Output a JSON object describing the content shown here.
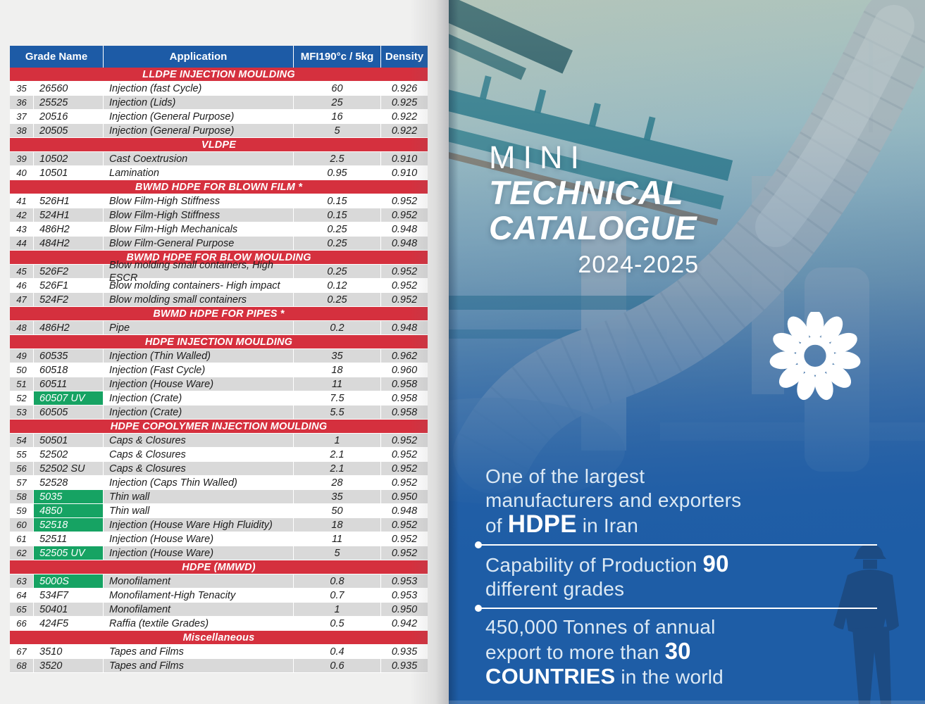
{
  "colors": {
    "header_blue": "#1d5ba6",
    "section_red": "#d5303e",
    "row_gray": "#d9d9d9",
    "highlight_green": "#16a363",
    "cover_blue": "#1e5da6"
  },
  "table": {
    "headers": [
      "Grade Name",
      "Application",
      "MFI190°c / 5kg",
      "Density"
    ],
    "sections": [
      {
        "title": "LLDPE INJECTION MOULDING",
        "rows": [
          {
            "no": "35",
            "grade": "26560",
            "app": "Injection (fast Cycle)",
            "mfi": "60",
            "den": "0.926",
            "shade": "w",
            "green": false
          },
          {
            "no": "36",
            "grade": "25525",
            "app": "Injection (Lids)",
            "mfi": "25",
            "den": "0.925",
            "shade": "g",
            "green": false
          },
          {
            "no": "37",
            "grade": "20516",
            "app": "Injection (General Purpose)",
            "mfi": "16",
            "den": "0.922",
            "shade": "w",
            "green": false
          },
          {
            "no": "38",
            "grade": "20505",
            "app": "Injection (General Purpose)",
            "mfi": "5",
            "den": "0.922",
            "shade": "g",
            "green": false
          }
        ]
      },
      {
        "title": "VLDPE",
        "rows": [
          {
            "no": "39",
            "grade": "10502",
            "app": "Cast Coextrusion",
            "mfi": "2.5",
            "den": "0.910",
            "shade": "g",
            "green": false
          },
          {
            "no": "40",
            "grade": "10501",
            "app": "Lamination",
            "mfi": "0.95",
            "den": "0.910",
            "shade": "w",
            "green": false
          }
        ]
      },
      {
        "title": "BWMD HDPE FOR BLOWN FILM *",
        "rows": [
          {
            "no": "41",
            "grade": "526H1",
            "app": "Blow Film-High Stiffness",
            "mfi": "0.15",
            "den": "0.952",
            "shade": "w",
            "green": false
          },
          {
            "no": "42",
            "grade": "524H1",
            "app": "Blow Film-High Stiffness",
            "mfi": "0.15",
            "den": "0.952",
            "shade": "g",
            "green": false
          },
          {
            "no": "43",
            "grade": "486H2",
            "app": "Blow Film-High Mechanicals",
            "mfi": "0.25",
            "den": "0.948",
            "shade": "w",
            "green": false
          },
          {
            "no": "44",
            "grade": "484H2",
            "app": "Blow Film-General Purpose",
            "mfi": "0.25",
            "den": "0.948",
            "shade": "g",
            "green": false
          }
        ]
      },
      {
        "title": "BWMD HDPE FOR BLOW MOULDING",
        "rows": [
          {
            "no": "45",
            "grade": "526F2",
            "app": "Blow molding small containers, High ESCR",
            "mfi": "0.25",
            "den": "0.952",
            "shade": "g",
            "green": false
          },
          {
            "no": "46",
            "grade": "526F1",
            "app": "Blow molding containers- High impact",
            "mfi": "0.12",
            "den": "0.952",
            "shade": "w",
            "green": false
          },
          {
            "no": "47",
            "grade": "524F2",
            "app": "Blow molding small containers",
            "mfi": "0.25",
            "den": "0.952",
            "shade": "g",
            "green": false
          }
        ]
      },
      {
        "title": "BWMD HDPE FOR PIPES *",
        "rows": [
          {
            "no": "48",
            "grade": "486H2",
            "app": "Pipe",
            "mfi": "0.2",
            "den": "0.948",
            "shade": "g",
            "green": false
          }
        ]
      },
      {
        "title": "HDPE INJECTION MOULDING",
        "rows": [
          {
            "no": "49",
            "grade": "60535",
            "app": "Injection (Thin Walled)",
            "mfi": "35",
            "den": "0.962",
            "shade": "g",
            "green": false
          },
          {
            "no": "50",
            "grade": "60518",
            "app": "Injection (Fast Cycle)",
            "mfi": "18",
            "den": "0.960",
            "shade": "w",
            "green": false
          },
          {
            "no": "51",
            "grade": "60511",
            "app": "Injection (House Ware)",
            "mfi": "11",
            "den": "0.958",
            "shade": "g",
            "green": false
          },
          {
            "no": "52",
            "grade": "60507 UV",
            "app": "Injection (Crate)",
            "mfi": "7.5",
            "den": "0.958",
            "shade": "w",
            "green": true
          },
          {
            "no": "53",
            "grade": "60505",
            "app": "Injection (Crate)",
            "mfi": "5.5",
            "den": "0.958",
            "shade": "g",
            "green": false
          }
        ]
      },
      {
        "title": "HDPE COPOLYMER INJECTION MOULDING",
        "rows": [
          {
            "no": "54",
            "grade": "50501",
            "app": "Caps & Closures",
            "mfi": "1",
            "den": "0.952",
            "shade": "g",
            "green": false
          },
          {
            "no": "55",
            "grade": "52502",
            "app": "Caps & Closures",
            "mfi": "2.1",
            "den": "0.952",
            "shade": "w",
            "green": false
          },
          {
            "no": "56",
            "grade": "52502 SU",
            "app": "Caps & Closures",
            "mfi": "2.1",
            "den": "0.952",
            "shade": "g",
            "green": false
          },
          {
            "no": "57",
            "grade": "52528",
            "app": "Injection (Caps Thin Walled)",
            "mfi": "28",
            "den": "0.952",
            "shade": "w",
            "green": false
          },
          {
            "no": "58",
            "grade": "5035",
            "app": "Thin wall",
            "mfi": "35",
            "den": "0.950",
            "shade": "g",
            "green": true
          },
          {
            "no": "59",
            "grade": "4850",
            "app": "Thin wall",
            "mfi": "50",
            "den": "0.948",
            "shade": "w",
            "green": true
          },
          {
            "no": "60",
            "grade": "52518",
            "app": "Injection (House Ware High Fluidity)",
            "mfi": "18",
            "den": "0.952",
            "shade": "g",
            "green": true
          },
          {
            "no": "61",
            "grade": "52511",
            "app": "Injection (House Ware)",
            "mfi": "11",
            "den": "0.952",
            "shade": "w",
            "green": false
          },
          {
            "no": "62",
            "grade": "52505 UV",
            "app": "Injection (House Ware)",
            "mfi": "5",
            "den": "0.952",
            "shade": "g",
            "green": true
          }
        ]
      },
      {
        "title": "HDPE (MMWD)",
        "rows": [
          {
            "no": "63",
            "grade": "5000S",
            "app": "Monofilament",
            "mfi": "0.8",
            "den": "0.953",
            "shade": "g",
            "green": true
          },
          {
            "no": "64",
            "grade": "534F7",
            "app": "Monofilament-High Tenacity",
            "mfi": "0.7",
            "den": "0.953",
            "shade": "w",
            "green": false
          },
          {
            "no": "65",
            "grade": "50401",
            "app": "Monofilament",
            "mfi": "1",
            "den": "0.950",
            "shade": "g",
            "green": false
          },
          {
            "no": "66",
            "grade": "424F5",
            "app": "Raffia (textile Grades)",
            "mfi": "0.5",
            "den": "0.942",
            "shade": "w",
            "green": false
          }
        ]
      },
      {
        "title": "Miscellaneous",
        "rows": [
          {
            "no": "67",
            "grade": "3510",
            "app": "Tapes and Films",
            "mfi": "0.4",
            "den": "0.935",
            "shade": "w",
            "green": false
          },
          {
            "no": "68",
            "grade": "3520",
            "app": "Tapes and Films",
            "mfi": "0.6",
            "den": "0.935",
            "shade": "g",
            "green": false
          }
        ]
      }
    ]
  },
  "cover": {
    "title": {
      "line1": "MINI",
      "line2": "TECHNICAL",
      "line3": "CATALOGUE",
      "years": "2024-2025"
    },
    "logo_name": "daisy-flower-logo",
    "stats": [
      {
        "lines": [
          [
            {
              "t": "One of the largest"
            }
          ],
          [
            {
              "t": "manufacturers and exporters"
            }
          ],
          [
            {
              "t": "of "
            },
            {
              "t": "HDPE",
              "b": true,
              "size": "xl"
            },
            {
              "t": " in Iran"
            }
          ]
        ]
      },
      {
        "lines": [
          [
            {
              "t": "Capability of Production "
            },
            {
              "t": "90",
              "b": true,
              "size": "lg"
            }
          ],
          [
            {
              "t": "different grades"
            }
          ]
        ]
      },
      {
        "lines": [
          [
            {
              "t": "450,000 Tonnes of annual"
            }
          ],
          [
            {
              "t": "export to more than "
            },
            {
              "t": "30",
              "b": true,
              "size": "lg"
            }
          ],
          [
            {
              "t": "COUNTRIES",
              "b": true,
              "size": "md"
            },
            {
              "t": " in the world"
            }
          ]
        ]
      }
    ]
  }
}
